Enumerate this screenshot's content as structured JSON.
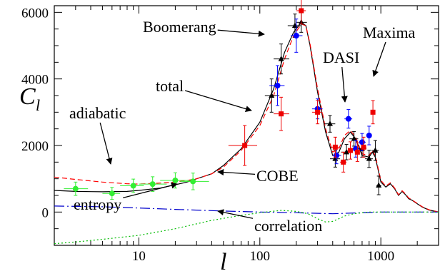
{
  "chart_data": {
    "type": "scatter",
    "xscale": "log",
    "xlim": [
      2,
      3000
    ],
    "ylim": [
      -1000,
      6200
    ],
    "xlabel": "l",
    "ylabel": {
      "main": "C",
      "sub": "l"
    },
    "xticks": [
      {
        "value": 10,
        "label": "10"
      },
      {
        "value": 100,
        "label": "100"
      },
      {
        "value": 1000,
        "label": "1000"
      }
    ],
    "yticks": [
      {
        "value": 0,
        "label": "0"
      },
      {
        "value": 2000,
        "label": "2000"
      },
      {
        "value": 4000,
        "label": "4000"
      },
      {
        "value": 6000,
        "label": "6000"
      }
    ],
    "curves": [
      {
        "name": "total",
        "color": "#000000",
        "dash": "",
        "points": [
          [
            2,
            650
          ],
          [
            3,
            620
          ],
          [
            5,
            610
          ],
          [
            8,
            620
          ],
          [
            10,
            650
          ],
          [
            15,
            720
          ],
          [
            20,
            820
          ],
          [
            25,
            900
          ],
          [
            30,
            1000
          ],
          [
            40,
            1150
          ],
          [
            50,
            1400
          ],
          [
            70,
            1900
          ],
          [
            100,
            2700
          ],
          [
            130,
            3700
          ],
          [
            160,
            4800
          ],
          [
            190,
            5400
          ],
          [
            220,
            5700
          ],
          [
            240,
            5600
          ],
          [
            260,
            5000
          ],
          [
            300,
            3600
          ],
          [
            350,
            2400
          ],
          [
            400,
            1700
          ],
          [
            450,
            1800
          ],
          [
            500,
            2200
          ],
          [
            560,
            2400
          ],
          [
            620,
            2200
          ],
          [
            700,
            1700
          ],
          [
            800,
            1650
          ],
          [
            850,
            1800
          ],
          [
            900,
            1650
          ],
          [
            1000,
            900
          ],
          [
            1100,
            750
          ],
          [
            1200,
            850
          ],
          [
            1300,
            700
          ],
          [
            1400,
            500
          ],
          [
            1500,
            620
          ],
          [
            1600,
            520
          ],
          [
            1700,
            400
          ],
          [
            1800,
            360
          ],
          [
            2000,
            250
          ],
          [
            2200,
            150
          ],
          [
            2500,
            60
          ],
          [
            3000,
            0
          ]
        ]
      },
      {
        "name": "adiabatic",
        "color": "#ff0000",
        "dash": "7,4",
        "points": [
          [
            2,
            1050
          ],
          [
            3,
            980
          ],
          [
            5,
            900
          ],
          [
            8,
            850
          ],
          [
            10,
            840
          ],
          [
            15,
            870
          ],
          [
            20,
            900
          ],
          [
            25,
            950
          ],
          [
            30,
            1000
          ],
          [
            40,
            1150
          ],
          [
            50,
            1350
          ],
          [
            70,
            1850
          ],
          [
            100,
            2600
          ],
          [
            130,
            3500
          ],
          [
            160,
            4600
          ],
          [
            190,
            5300
          ],
          [
            220,
            5650
          ],
          [
            240,
            5600
          ],
          [
            260,
            5050
          ],
          [
            300,
            3700
          ],
          [
            350,
            2500
          ],
          [
            400,
            1800
          ],
          [
            450,
            1900
          ],
          [
            500,
            2300
          ],
          [
            560,
            2450
          ],
          [
            620,
            2250
          ],
          [
            700,
            1750
          ],
          [
            800,
            1700
          ],
          [
            850,
            1850
          ],
          [
            900,
            1700
          ],
          [
            1000,
            950
          ],
          [
            1100,
            780
          ],
          [
            1200,
            880
          ],
          [
            1300,
            720
          ],
          [
            1400,
            520
          ],
          [
            1500,
            640
          ],
          [
            1600,
            540
          ],
          [
            1700,
            420
          ],
          [
            1800,
            370
          ],
          [
            2000,
            260
          ],
          [
            2200,
            160
          ],
          [
            2500,
            70
          ],
          [
            3000,
            0
          ]
        ]
      },
      {
        "name": "entropy",
        "color": "#0000cc",
        "dash": "14,4,2,4",
        "points": [
          [
            2,
            180
          ],
          [
            5,
            160
          ],
          [
            10,
            120
          ],
          [
            20,
            80
          ],
          [
            50,
            30
          ],
          [
            100,
            0
          ],
          [
            200,
            -20
          ],
          [
            400,
            -50
          ],
          [
            700,
            -20
          ],
          [
            1000,
            0
          ],
          [
            2000,
            0
          ],
          [
            3000,
            0
          ]
        ]
      },
      {
        "name": "correlation",
        "color": "#00bb00",
        "dash": "2,3",
        "points": [
          [
            2,
            -950
          ],
          [
            3,
            -900
          ],
          [
            5,
            -820
          ],
          [
            10,
            -700
          ],
          [
            20,
            -500
          ],
          [
            40,
            -250
          ],
          [
            70,
            -100
          ],
          [
            100,
            -20
          ],
          [
            150,
            50
          ],
          [
            200,
            20
          ],
          [
            250,
            -50
          ],
          [
            300,
            -200
          ],
          [
            350,
            -300
          ],
          [
            400,
            -280
          ],
          [
            450,
            -200
          ],
          [
            500,
            -120
          ],
          [
            600,
            -50
          ],
          [
            800,
            0
          ],
          [
            1000,
            0
          ],
          [
            3000,
            0
          ]
        ]
      }
    ],
    "series": [
      {
        "name": "COBE",
        "color": "#33ee33",
        "marker": "circle",
        "points": [
          [
            3,
            700,
            200,
            2.4,
            3.8
          ],
          [
            6,
            560,
            180,
            5,
            7
          ],
          [
            9,
            790,
            200,
            7,
            11
          ],
          [
            13,
            840,
            220,
            10,
            17
          ],
          [
            20,
            950,
            230,
            15,
            26
          ],
          [
            28,
            920,
            250,
            22,
            38
          ]
        ]
      },
      {
        "name": "Boomerang",
        "color": "#000000",
        "marker": "triangle",
        "points": [
          [
            125,
            3500,
            500,
            110,
            145
          ],
          [
            150,
            4600,
            450,
            130,
            175
          ],
          [
            195,
            5600,
            350,
            170,
            220
          ],
          [
            220,
            5700,
            300,
            200,
            245
          ],
          [
            380,
            2650,
            250,
            340,
            420
          ],
          [
            420,
            1600,
            250,
            380,
            460
          ],
          [
            520,
            1800,
            230,
            470,
            570
          ],
          [
            600,
            2200,
            220,
            550,
            650
          ],
          [
            700,
            1900,
            250,
            640,
            760
          ],
          [
            800,
            1600,
            260,
            740,
            860
          ],
          [
            900,
            1850,
            300,
            840,
            960
          ],
          [
            960,
            800,
            280,
            920,
            1010
          ]
        ]
      },
      {
        "name": "DASI",
        "color": "#0000ff",
        "marker": "circle",
        "points": [
          [
            140,
            3800,
            600,
            120,
            160
          ],
          [
            200,
            5300,
            500,
            180,
            225
          ],
          [
            300,
            3100,
            300,
            270,
            330
          ],
          [
            430,
            1700,
            250,
            400,
            470
          ],
          [
            540,
            2800,
            280,
            500,
            580
          ],
          [
            620,
            1900,
            250,
            580,
            660
          ],
          [
            700,
            2100,
            260,
            660,
            750
          ],
          [
            800,
            2300,
            280,
            760,
            840
          ]
        ]
      },
      {
        "name": "Maxima",
        "color": "#ee0000",
        "marker": "square",
        "points": [
          [
            75,
            2000,
            600,
            55,
            95
          ],
          [
            150,
            2950,
            500,
            130,
            175
          ],
          [
            220,
            6050,
            400,
            200,
            240
          ],
          [
            300,
            3000,
            350,
            270,
            330
          ],
          [
            420,
            1950,
            300,
            390,
            450
          ],
          [
            490,
            1500,
            300,
            460,
            520
          ],
          [
            560,
            1850,
            260,
            530,
            590
          ],
          [
            640,
            1800,
            280,
            610,
            670
          ],
          [
            720,
            1950,
            300,
            690,
            760
          ],
          [
            860,
            3000,
            350,
            820,
            900
          ]
        ]
      }
    ],
    "annotations": [
      {
        "text": "Boomerang",
        "ax": 200,
        "ay": 45,
        "tx": 370,
        "ty": 48
      },
      {
        "text": "Maxima",
        "ax": 508,
        "ay": 53,
        "tx": 523,
        "ty": 107
      },
      {
        "text": "DASI",
        "ax": 452,
        "ay": 88,
        "tx": 483,
        "ty": 143
      },
      {
        "text": "total",
        "ax": 218,
        "ay": 128,
        "tx": 352,
        "ty": 155
      },
      {
        "text": "adiabatic",
        "ax": 97,
        "ay": 166,
        "tx": 155,
        "ty": 230
      },
      {
        "text": "COBE",
        "ax": 359,
        "ay": 254,
        "tx": 305,
        "ty": 241
      },
      {
        "text": "entropy",
        "ax": 103,
        "ay": 294,
        "tx": 248,
        "ty": 258
      },
      {
        "text": "correlation",
        "ax": 356,
        "ay": 324,
        "tx": 305,
        "ty": 296
      }
    ]
  }
}
